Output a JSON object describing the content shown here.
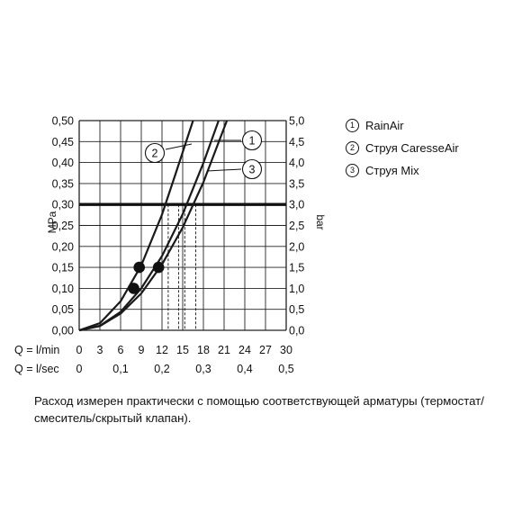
{
  "chart_data": {
    "type": "line",
    "y_left": {
      "label": "MPa",
      "range": [
        0,
        0.5
      ],
      "ticks": [
        "0,00",
        "0,05",
        "0,10",
        "0,15",
        "0,20",
        "0,25",
        "0,30",
        "0,35",
        "0,40",
        "0,45",
        "0,50"
      ]
    },
    "y_right": {
      "label": "bar",
      "range": [
        0,
        5
      ],
      "ticks": [
        "0,0",
        "0,5",
        "1,0",
        "1,5",
        "2,0",
        "2,5",
        "3,0",
        "3,5",
        "4,0",
        "4,5",
        "5,0"
      ]
    },
    "x_lmin": {
      "label": "Q = l/min",
      "range": [
        0,
        30
      ],
      "ticks": [
        "0",
        "3",
        "6",
        "9",
        "12",
        "15",
        "18",
        "21",
        "24",
        "27",
        "30"
      ]
    },
    "x_lsec": {
      "label": "Q = l/sec",
      "range": [
        0,
        0.5
      ],
      "ticks": [
        "0",
        "0,1",
        "0,2",
        "0,3",
        "0,4",
        "0,5"
      ]
    },
    "reference_pressure_mpa": 0.3,
    "series": [
      {
        "name": "1",
        "x": [
          0,
          3,
          6,
          9,
          12,
          15,
          18,
          20.2
        ],
        "y": [
          0,
          0.011,
          0.044,
          0.1,
          0.177,
          0.277,
          0.399,
          0.5
        ]
      },
      {
        "name": "2",
        "x": [
          0,
          3,
          6,
          9,
          12,
          13.9,
          16.5
        ],
        "y": [
          0,
          0.017,
          0.069,
          0.155,
          0.276,
          0.37,
          0.5
        ]
      },
      {
        "name": "3",
        "x": [
          0,
          3,
          6,
          9,
          12,
          15,
          18,
          21.4
        ],
        "y": [
          0,
          0.01,
          0.04,
          0.088,
          0.157,
          0.245,
          0.353,
          0.5
        ]
      }
    ],
    "markers": [
      {
        "x": 7.9,
        "y": 0.1
      },
      {
        "x": 8.7,
        "y": 0.15
      },
      {
        "x": 11.5,
        "y": 0.15
      }
    ],
    "drop_lines_x": [
      12.9,
      14.4,
      15.3,
      16.9
    ],
    "callouts": [
      {
        "label": "1",
        "series": "1"
      },
      {
        "label": "2",
        "series": "2"
      },
      {
        "label": "3",
        "series": "3"
      }
    ],
    "grid": true
  },
  "legend": [
    {
      "num": "1",
      "label": "RainAir"
    },
    {
      "num": "2",
      "label": "Струя CaresseAir"
    },
    {
      "num": "3",
      "label": "Струя Mix"
    }
  ],
  "note": "Расход измерен практически с помощью соответствующей арматуры (термостат/смеситель/скрытый клапан)."
}
